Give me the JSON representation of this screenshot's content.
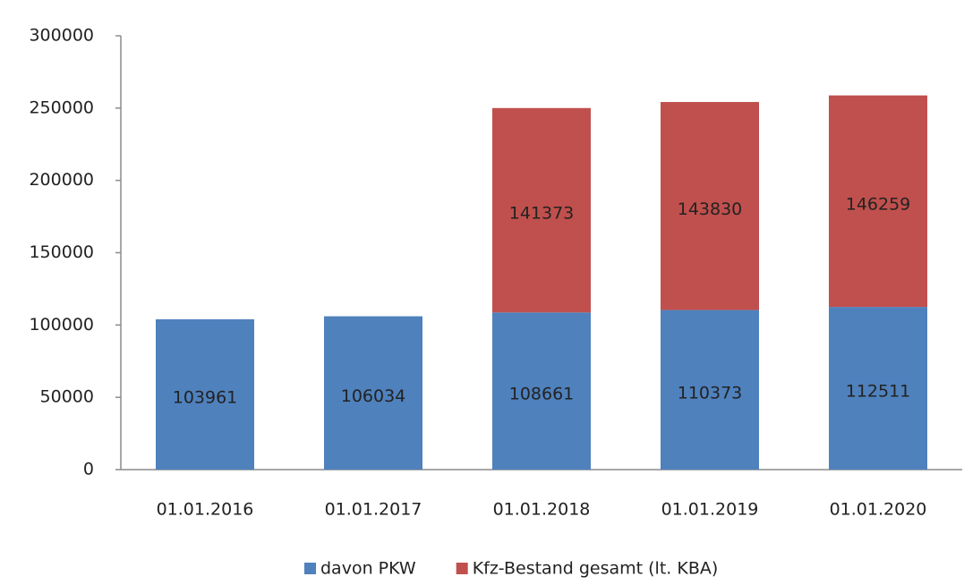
{
  "chart_data": {
    "type": "stacked_bar",
    "categories": [
      "01.01.2016",
      "01.01.2017",
      "01.01.2018",
      "01.01.2019",
      "01.01.2020"
    ],
    "series": [
      {
        "name": "davon PKW",
        "color": "#4f81bd",
        "values": [
          103961,
          106034,
          108661,
          110373,
          112511
        ]
      },
      {
        "name": "Kfz-Bestand gesamt (lt. KBA)",
        "color": "#c0504d",
        "values": [
          null,
          null,
          141373,
          143830,
          146259
        ]
      }
    ],
    "ylim": [
      0,
      300000
    ],
    "yticks": [
      0,
      50000,
      100000,
      150000,
      200000,
      250000,
      300000
    ],
    "grid": false,
    "legend": "bottom"
  }
}
